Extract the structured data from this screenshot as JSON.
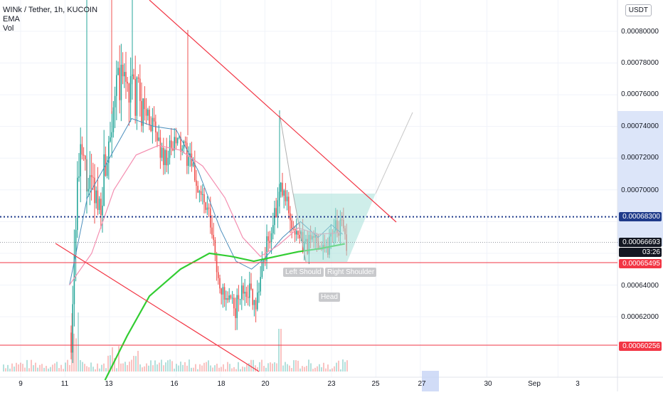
{
  "legend": {
    "symbol": "WINk / Tether, 1h, KUCOIN",
    "indicator1": "EMA",
    "indicator2": "Vol"
  },
  "currency_button": "USDT",
  "y_axis_ticks": [
    "0.00080000",
    "0.00078000",
    "0.00076000",
    "0.00074000",
    "0.00072000",
    "0.00070000",
    "0.00064000",
    "0.00062000"
  ],
  "price_tags": {
    "dotted_level": "0.00068300",
    "current_price": "0.00066693",
    "countdown": "03:26",
    "support_upper": "0.00065495",
    "support_lower": "0.00060256"
  },
  "x_axis_ticks": [
    "9",
    "11",
    "13",
    "16",
    "18",
    "20",
    "23",
    "25",
    "27",
    "30",
    "Sep",
    "3"
  ],
  "pattern_labels": {
    "left_shoulder": "Left Should",
    "right_shoulder": "Right Shoulder",
    "head": "Head"
  },
  "colors": {
    "up_candle": "#26a69a",
    "down_candle": "#ef5350",
    "trendline": "#f23645",
    "ema_fast": "#4c8fbd",
    "ema_mid": "#f48fb1",
    "ema_slow": "#32cd32",
    "horizontal_support": "#f23645",
    "dotted_level": "#1e3a8a",
    "pattern_fill": "#a8e0d8",
    "axis_highlight": "#c5d3f5"
  },
  "chart_data": {
    "type": "candlestick",
    "title": "WINk / Tether, 1h, KUCOIN",
    "ylim": [
      0.0006,
      0.00081
    ],
    "x_range_days": [
      "Aug 9",
      "Sep 3"
    ],
    "horizontal_levels": [
      0.000683,
      0.00065495,
      0.00060256
    ],
    "current_price": 0.00066693,
    "ema_slow_series": [
      [
        12.8,
        0.00058
      ],
      [
        13.8,
        0.000608
      ],
      [
        14.8,
        0.000633
      ],
      [
        16.2,
        0.00065
      ],
      [
        17.5,
        0.00066
      ],
      [
        18.5,
        0.000658
      ],
      [
        19.5,
        0.000655
      ],
      [
        20.5,
        0.000658
      ],
      [
        21.5,
        0.000661
      ],
      [
        22.5,
        0.000663
      ],
      [
        23.6,
        0.000666
      ]
    ],
    "ema_mid_series": [
      [
        11.2,
        0.00064
      ],
      [
        12.2,
        0.00066
      ],
      [
        13.2,
        0.0007
      ],
      [
        14.2,
        0.000722
      ],
      [
        15.2,
        0.000728
      ],
      [
        16.2,
        0.000725
      ],
      [
        17.2,
        0.000715
      ],
      [
        18.2,
        0.000695
      ],
      [
        19.0,
        0.00067
      ],
      [
        19.8,
        0.000658
      ],
      [
        20.6,
        0.000665
      ],
      [
        21.5,
        0.000676
      ],
      [
        22.4,
        0.000672
      ],
      [
        23.4,
        0.000673
      ]
    ],
    "ema_fast_series": [
      [
        11.2,
        0.00064
      ],
      [
        12.0,
        0.000695
      ],
      [
        13.0,
        0.00072
      ],
      [
        14.0,
        0.000745
      ],
      [
        15.0,
        0.00074
      ],
      [
        16.0,
        0.000738
      ],
      [
        17.0,
        0.000712
      ],
      [
        18.0,
        0.000675
      ],
      [
        18.7,
        0.000655
      ],
      [
        19.4,
        0.00065
      ],
      [
        20.0,
        0.000657
      ],
      [
        20.8,
        0.00067
      ],
      [
        21.6,
        0.00068
      ],
      [
        22.4,
        0.00067
      ],
      [
        23.0,
        0.000678
      ],
      [
        23.5,
        0.000672
      ]
    ],
    "pattern": "head-and-shoulders (inverse)"
  }
}
